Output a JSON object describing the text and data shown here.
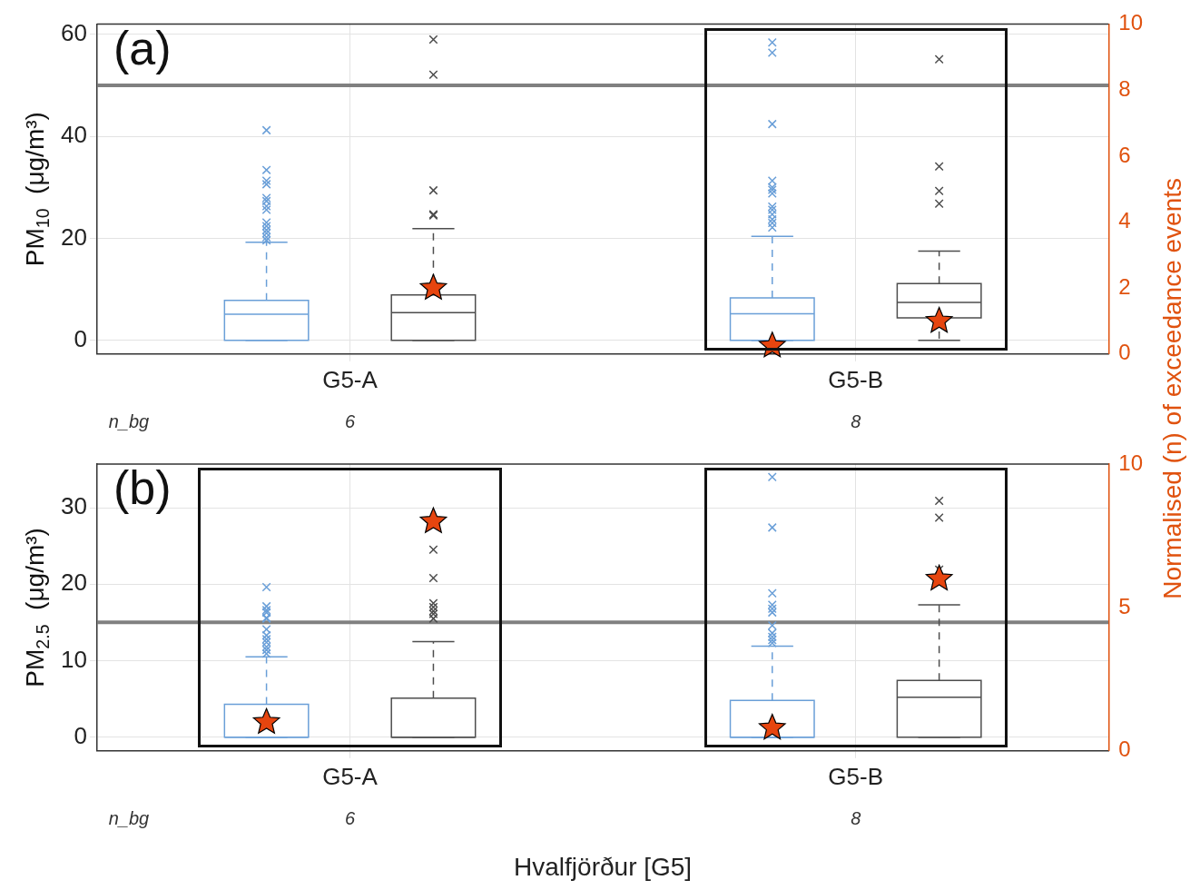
{
  "chart_data": [
    {
      "type": "box",
      "title": "(a)",
      "ylabel": "PM$_{10}$  (μg/m³)",
      "y2label": "Normalised (n) of exceedance events",
      "categories": [
        "G5-A",
        "G5-B"
      ],
      "series": [
        {
          "color": "#6a9fd8",
          "boxes": [
            {
              "low": 0,
              "q1": 0,
              "median": 5.1,
              "q3": 7.8,
              "high": 19.2,
              "outliers": [
                41.2,
                33.4,
                31.3,
                30.6,
                27.9,
                27.3,
                26.3,
                25.6,
                23.1,
                22.4,
                21.6,
                21.0,
                20.2,
                19.6
              ]
            },
            {
              "low": 0,
              "q1": 0,
              "median": 5.2,
              "q3": 8.3,
              "high": 20.4,
              "outliers": [
                58.4,
                56.4,
                42.4,
                31.3,
                30.0,
                29.5,
                28.8,
                26.2,
                25.6,
                24.7,
                23.7,
                23.0,
                22.1
              ]
            }
          ]
        },
        {
          "color": "#4d4d4d",
          "boxes": [
            {
              "low": 0,
              "q1": 0,
              "median": 5.4,
              "q3": 8.9,
              "high": 21.9,
              "outliers": [
                59.0,
                52.1,
                29.4,
                24.7,
                24.5
              ]
            },
            {
              "low": 0,
              "q1": 4.4,
              "median": 7.4,
              "q3": 11.1,
              "high": 17.5,
              "outliers": [
                55.1,
                34.1,
                29.3,
                26.8
              ]
            }
          ]
        },
        {
          "type": "scatter",
          "axis": "y2",
          "marker": "star",
          "color": "#e6450f",
          "x": [
            "G5-A",
            "G5-B"
          ],
          "values": [
            null,
            0.25
          ]
        },
        {
          "type": "scatter",
          "axis": "y2",
          "marker": "star",
          "color": "#e6450f",
          "x": [
            "G5-A",
            "G5-B"
          ],
          "values": [
            2,
            1
          ]
        }
      ],
      "ylim": [
        -2.7,
        62
      ],
      "yticks": [
        0,
        20,
        40,
        60
      ],
      "y2lim": [
        0,
        10
      ],
      "y2ticks": [
        0,
        2,
        4,
        6,
        8,
        10
      ],
      "grid": true,
      "ref_lines": [
        {
          "axis": "y",
          "value": 50,
          "color": "#808080"
        }
      ],
      "annotations": [
        "n_bg",
        "6",
        "8"
      ]
    },
    {
      "type": "box",
      "title": "(b)",
      "ylabel": "PM$_{2.5}$  (μg/m³)",
      "xlabel": "Hvalfjörður [G5]",
      "categories": [
        "G5-A",
        "G5-B"
      ],
      "series": [
        {
          "color": "#6a9fd8",
          "boxes": [
            {
              "low": 0,
              "q1": 0,
              "median": 0,
              "q3": 4.3,
              "high": 10.5,
              "outliers": [
                19.6,
                17.1,
                16.6,
                16.3,
                15.6,
                15.5,
                14.1,
                13.3,
                12.8,
                12.4,
                11.8,
                11.4,
                10.9
              ]
            },
            {
              "low": 0,
              "q1": 0,
              "median": 0,
              "q3": 4.8,
              "high": 11.9,
              "outliers": [
                34.0,
                27.4,
                18.8,
                17.3,
                16.8,
                16.3,
                14.6,
                13.6,
                13.1,
                12.7,
                12.3
              ]
            }
          ]
        },
        {
          "color": "#4d4d4d",
          "boxes": [
            {
              "low": 0,
              "q1": 0,
              "median": 0,
              "q3": 5.1,
              "high": 12.5,
              "outliers": [
                24.5,
                20.8,
                17.5,
                17.0,
                16.5,
                16.1,
                15.5
              ]
            },
            {
              "low": 0,
              "q1": 0,
              "median": 5.2,
              "q3": 7.4,
              "high": 17.3,
              "outliers": [
                30.9,
                28.7,
                21.9
              ]
            }
          ]
        },
        {
          "type": "scatter",
          "axis": "y2",
          "marker": "star",
          "color": "#e6450f",
          "x": [
            "G5-A",
            "G5-B"
          ],
          "values": [
            1,
            0.8
          ]
        },
        {
          "type": "scatter",
          "axis": "y2",
          "marker": "star",
          "color": "#e6450f",
          "x": [
            "G5-A",
            "G5-B"
          ],
          "values": [
            8,
            6
          ]
        }
      ],
      "ylim": [
        -1.8,
        35.7
      ],
      "yticks": [
        0,
        10,
        20,
        30
      ],
      "y2lim": [
        0,
        10
      ],
      "y2ticks": [
        0,
        5,
        10
      ],
      "grid": true,
      "ref_lines": [
        {
          "axis": "y",
          "value": 15,
          "color": "#808080"
        }
      ],
      "annotations": [
        "n_bg",
        "6",
        "8"
      ]
    }
  ]
}
